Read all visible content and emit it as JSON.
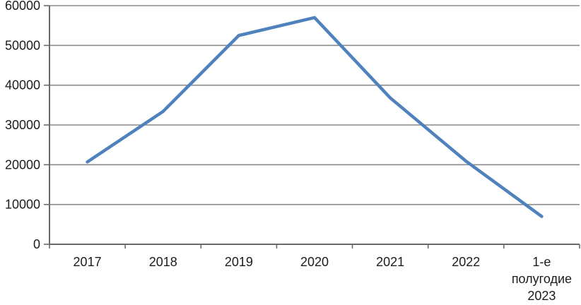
{
  "chart_data": {
    "type": "line",
    "title": "",
    "xlabel": "",
    "ylabel": "",
    "categories": [
      "2017",
      "2018",
      "2019",
      "2020",
      "2021",
      "2022",
      "1-е полугодие 2023"
    ],
    "values": [
      20700,
      33400,
      52500,
      57000,
      36800,
      20900,
      7000
    ],
    "series_name": "",
    "ylim": [
      0,
      60000
    ],
    "yticks": [
      0,
      10000,
      20000,
      30000,
      40000,
      50000,
      60000
    ],
    "ytick_labels": [
      "0",
      "10000",
      "20000",
      "30000",
      "40000",
      "50000",
      "60000"
    ],
    "grid": true,
    "legend": "none",
    "colors": {
      "line": "#4F81BD",
      "gridline": "#8a8a8a",
      "axis": "#6a6a6a",
      "text": "#1c1c1c",
      "background": "#ffffff"
    }
  }
}
